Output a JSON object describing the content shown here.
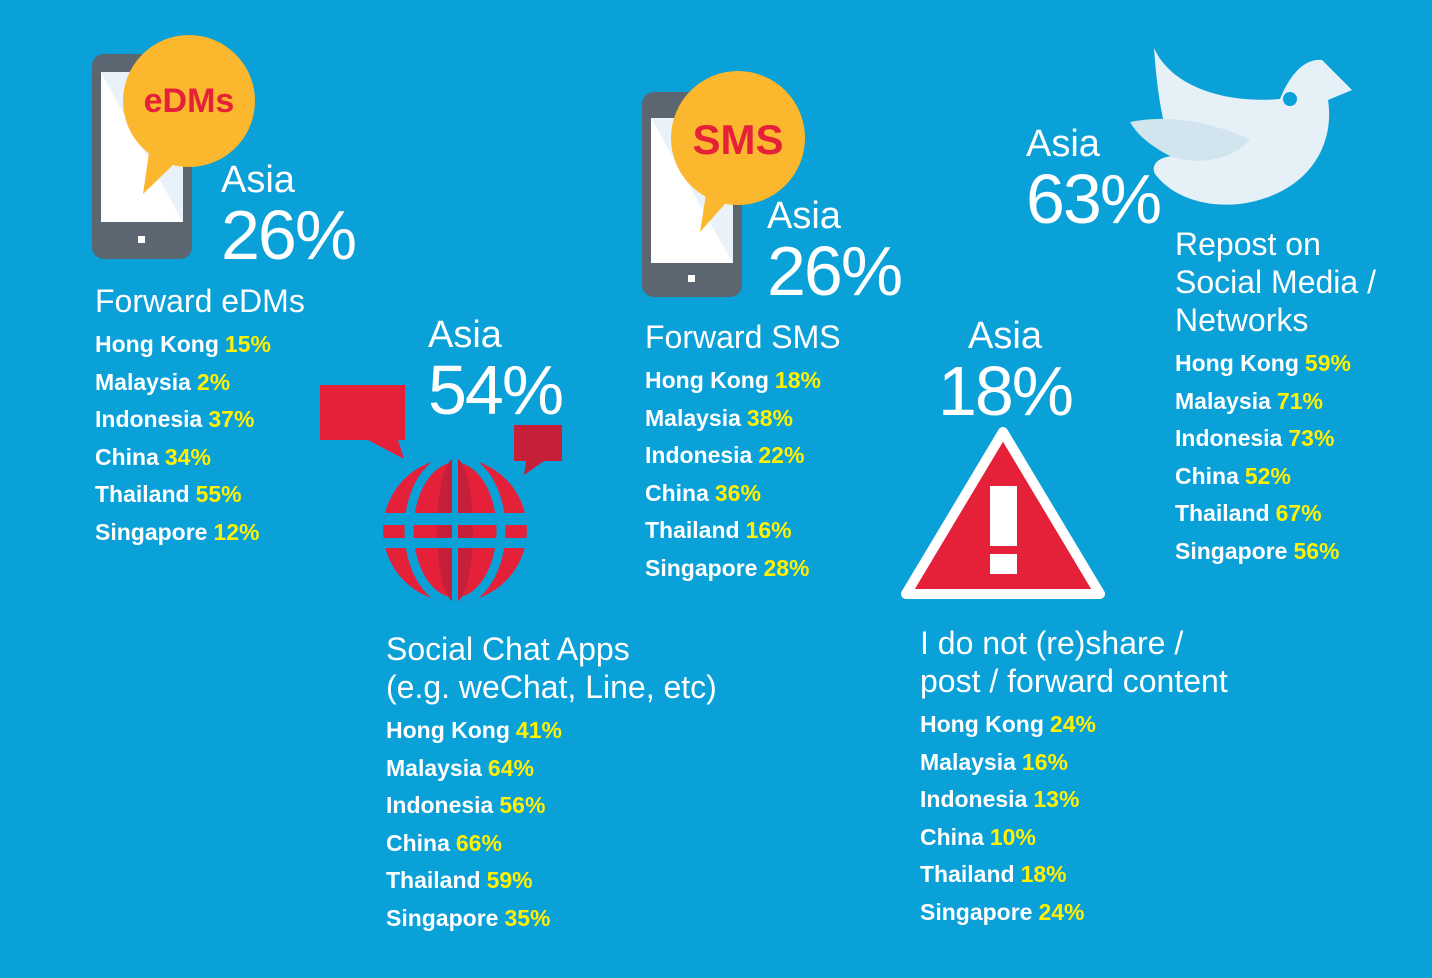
{
  "chart_data": [
    {
      "type": "table",
      "badge": "eDMs",
      "region": "Asia",
      "asia_value": "26%",
      "label": "Forward eDMs",
      "rows": [
        {
          "country": "Hong Kong",
          "value": "15%"
        },
        {
          "country": "Malaysia",
          "value": "2%"
        },
        {
          "country": "Indonesia",
          "value": "37%"
        },
        {
          "country": "China",
          "value": "34%"
        },
        {
          "country": "Thailand",
          "value": "55%"
        },
        {
          "country": "Singapore",
          "value": "12%"
        }
      ]
    },
    {
      "type": "table",
      "region": "Asia",
      "asia_value": "54%",
      "label": "Social Chat Apps",
      "label2": "(e.g. weChat, Line, etc)",
      "rows": [
        {
          "country": "Hong Kong",
          "value": "41%"
        },
        {
          "country": "Malaysia",
          "value": "64%"
        },
        {
          "country": "Indonesia",
          "value": "56%"
        },
        {
          "country": "China",
          "value": "66%"
        },
        {
          "country": "Thailand",
          "value": "59%"
        },
        {
          "country": "Singapore",
          "value": "35%"
        }
      ]
    },
    {
      "type": "table",
      "badge": "SMS",
      "region": "Asia",
      "asia_value": "26%",
      "label": "Forward SMS",
      "rows": [
        {
          "country": "Hong Kong",
          "value": "18%"
        },
        {
          "country": "Malaysia",
          "value": "38%"
        },
        {
          "country": "Indonesia",
          "value": "22%"
        },
        {
          "country": "China",
          "value": "36%"
        },
        {
          "country": "Thailand",
          "value": "16%"
        },
        {
          "country": "Singapore",
          "value": "28%"
        }
      ]
    },
    {
      "type": "table",
      "region": "Asia",
      "asia_value": "18%",
      "label": "I do not (re)share /",
      "label2": "post / forward content",
      "rows": [
        {
          "country": "Hong Kong",
          "value": "24%"
        },
        {
          "country": "Malaysia",
          "value": "16%"
        },
        {
          "country": "Indonesia",
          "value": "13%"
        },
        {
          "country": "China",
          "value": "10%"
        },
        {
          "country": "Thailand",
          "value": "18%"
        },
        {
          "country": "Singapore",
          "value": "24%"
        }
      ]
    },
    {
      "type": "table",
      "region": "Asia",
      "asia_value": "63%",
      "label": "Repost on",
      "label2": "Social Media /",
      "label3": "Networks",
      "rows": [
        {
          "country": "Hong Kong",
          "value": "59%"
        },
        {
          "country": "Malaysia",
          "value": "71%"
        },
        {
          "country": "Indonesia",
          "value": "73%"
        },
        {
          "country": "China",
          "value": "52%"
        },
        {
          "country": "Thailand",
          "value": "67%"
        },
        {
          "country": "Singapore",
          "value": "56%"
        }
      ]
    }
  ],
  "colors": {
    "background": "#0aa0d8",
    "value_highlight": "#fff100",
    "accent_red": "#e5213a",
    "bubble_orange": "#fbb72d"
  },
  "icons": [
    "phone-edms-icon",
    "phone-sms-icon",
    "globe-chat-icon",
    "warning-icon",
    "bird-icon"
  ]
}
